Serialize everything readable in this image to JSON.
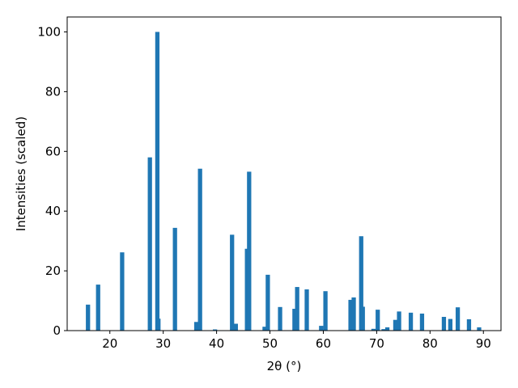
{
  "chart_data": {
    "type": "bar",
    "xlabel": "2θ (°)",
    "ylabel": "Intensities (scaled)",
    "xlim": [
      12,
      93.3
    ],
    "ylim": [
      0,
      105
    ],
    "xticks": [
      20,
      30,
      40,
      50,
      60,
      70,
      80,
      90
    ],
    "yticks": [
      0,
      20,
      40,
      60,
      80,
      100
    ],
    "bar_width": 0.8,
    "grid": false,
    "bar_color": "#1f77b4",
    "x": [
      15.9,
      17.8,
      22.3,
      27.5,
      28.9,
      29.1,
      32.2,
      36.2,
      36.9,
      39.7,
      42.9,
      43.6,
      45.7,
      46.1,
      49.0,
      49.6,
      51.9,
      54.6,
      55.1,
      56.9,
      59.6,
      60.4,
      65.1,
      65.7,
      67.1,
      67.4,
      69.4,
      70.2,
      71.3,
      72.0,
      73.5,
      74.2,
      76.4,
      78.5,
      82.6,
      83.8,
      85.2,
      87.3,
      89.2
    ],
    "values": [
      8.7,
      15.4,
      26.2,
      58.0,
      100.0,
      4.0,
      34.4,
      2.9,
      54.2,
      0.4,
      32.1,
      2.3,
      27.4,
      53.2,
      1.3,
      18.7,
      7.9,
      7.3,
      14.6,
      13.8,
      1.6,
      13.2,
      10.3,
      11.1,
      31.6,
      8.0,
      0.6,
      7.0,
      0.5,
      1.1,
      3.6,
      6.4,
      6.0,
      5.7,
      4.6,
      3.9,
      7.8,
      3.8,
      1.1
    ]
  }
}
